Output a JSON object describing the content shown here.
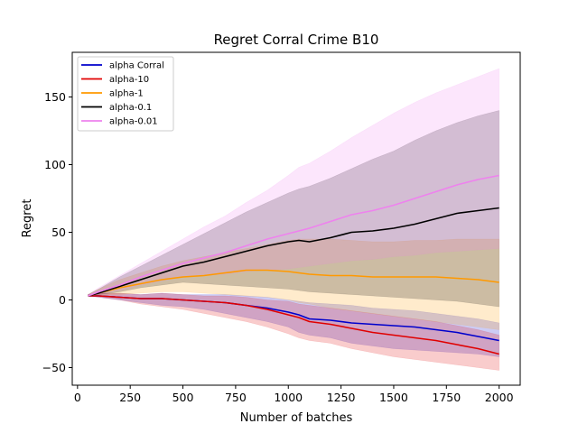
{
  "chart_data": {
    "type": "line",
    "title": "Regret Corral Crime B10",
    "xlabel": "Number of batches",
    "ylabel": "Regret",
    "xlim": [
      -25,
      2100
    ],
    "ylim": [
      -63,
      183
    ],
    "xticks": [
      0,
      250,
      500,
      750,
      1000,
      1250,
      1500,
      1750,
      2000
    ],
    "yticks": [
      -50,
      0,
      50,
      100,
      150
    ],
    "grid": false,
    "legend_position": "top-left",
    "x": [
      50,
      100,
      200,
      300,
      400,
      500,
      600,
      700,
      800,
      900,
      1000,
      1050,
      1100,
      1200,
      1300,
      1400,
      1500,
      1600,
      1700,
      1800,
      1900,
      2000
    ],
    "series": [
      {
        "name": "alpha Corral",
        "color": "#0000cc",
        "values": [
          3,
          3,
          2,
          1,
          1,
          0,
          -1,
          -2,
          -4,
          -6,
          -9,
          -11,
          -14,
          -15,
          -17,
          -18,
          -19,
          -20,
          -22,
          -24,
          -27,
          -30
        ],
        "lower": [
          3,
          2,
          0,
          -2,
          -4,
          -5,
          -7,
          -10,
          -13,
          -16,
          -20,
          -24,
          -26,
          -28,
          -32,
          -34,
          -36,
          -37,
          -38,
          -39,
          -40,
          -42
        ],
        "upper": [
          4,
          5,
          5,
          4,
          5,
          4,
          4,
          4,
          3,
          2,
          0,
          -1,
          -2,
          -3,
          -4,
          -6,
          -7,
          -8,
          -10,
          -12,
          -14,
          -17
        ]
      },
      {
        "name": "alpha-10",
        "color": "#e00000",
        "values": [
          3,
          3,
          2,
          1,
          1,
          0,
          -1,
          -2,
          -4,
          -7,
          -11,
          -13,
          -16,
          -18,
          -21,
          -24,
          -26,
          -28,
          -30,
          -33,
          -36,
          -40
        ],
        "lower": [
          3,
          2,
          0,
          -3,
          -5,
          -7,
          -10,
          -13,
          -16,
          -20,
          -25,
          -28,
          -30,
          -32,
          -36,
          -39,
          -42,
          -44,
          -46,
          -48,
          -50,
          -52
        ],
        "upper": [
          4,
          5,
          5,
          4,
          5,
          4,
          3,
          3,
          2,
          0,
          -1,
          -3,
          -4,
          -6,
          -8,
          -10,
          -12,
          -14,
          -16,
          -19,
          -22,
          -26
        ]
      },
      {
        "name": "alpha-1",
        "color": "#ff9900",
        "values": [
          3,
          5,
          9,
          12,
          15,
          17,
          18,
          20,
          22,
          22,
          21,
          20,
          19,
          18,
          18,
          17,
          17,
          17,
          17,
          16,
          15,
          13
        ],
        "lower": [
          3,
          4,
          4,
          5,
          6,
          6,
          5,
          4,
          3,
          2,
          0,
          -2,
          -3,
          -6,
          -8,
          -10,
          -12,
          -14,
          -16,
          -18,
          -20,
          -22
        ],
        "upper": [
          4,
          8,
          15,
          20,
          25,
          29,
          32,
          35,
          38,
          41,
          44,
          45,
          45,
          45,
          44,
          43,
          43,
          44,
          44,
          45,
          45,
          45
        ]
      },
      {
        "name": "alpha-0.1",
        "color": "#000000",
        "values": [
          3,
          5,
          10,
          15,
          20,
          25,
          28,
          32,
          36,
          40,
          43,
          44,
          43,
          46,
          50,
          51,
          53,
          56,
          60,
          64,
          66,
          68
        ],
        "lower": [
          3,
          4,
          6,
          9,
          11,
          13,
          12,
          11,
          10,
          9,
          8,
          7,
          6,
          5,
          4,
          3,
          2,
          1,
          0,
          -1,
          -3,
          -5
        ],
        "upper": [
          4,
          8,
          17,
          25,
          33,
          41,
          49,
          57,
          65,
          72,
          79,
          82,
          84,
          90,
          97,
          104,
          110,
          118,
          125,
          131,
          136,
          140
        ]
      },
      {
        "name": "alpha-0.01",
        "color": "#ee82ee",
        "values": [
          3,
          6,
          11,
          17,
          22,
          27,
          31,
          35,
          40,
          45,
          49,
          51,
          53,
          58,
          63,
          66,
          70,
          75,
          80,
          85,
          89,
          92
        ],
        "lower": [
          3,
          4,
          7,
          11,
          14,
          17,
          18,
          19,
          21,
          22,
          23,
          24,
          25,
          27,
          29,
          30,
          32,
          33,
          35,
          36,
          37,
          38
        ],
        "upper": [
          4,
          9,
          18,
          27,
          36,
          45,
          54,
          62,
          72,
          81,
          92,
          98,
          101,
          110,
          120,
          129,
          138,
          146,
          153,
          159,
          165,
          171
        ]
      }
    ]
  }
}
